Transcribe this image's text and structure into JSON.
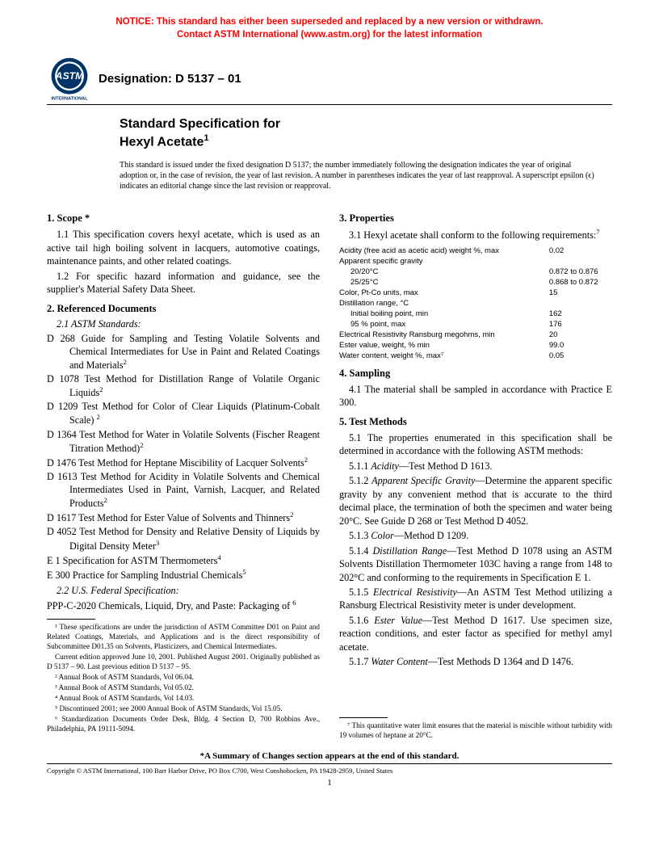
{
  "notice": {
    "line1": "NOTICE: This standard has either been superseded and replaced by a new version or withdrawn.",
    "line2": "Contact ASTM International (www.astm.org) for the latest information"
  },
  "designation_label": "Designation: D 5137 – 01",
  "logo": {
    "top_text": "ASTM",
    "bottom_text": "INTERNATIONAL"
  },
  "title": {
    "line1": "Standard Specification for",
    "line2": "Hexyl Acetate",
    "sup": "1"
  },
  "intro": "This standard is issued under the fixed designation D 5137; the number immediately following the designation indicates the year of original adoption or, in the case of revision, the year of last revision. A number in parentheses indicates the year of last reapproval. A superscript epsilon (ϵ) indicates an editorial change since the last revision or reapproval.",
  "sections": {
    "scope": {
      "heading": "1.  Scope *",
      "p1": "1.1 This specification covers hexyl acetate, which is used as an active tail high boiling solvent in lacquers, automotive coatings, maintenance paints, and other related coatings.",
      "p2": "1.2 For specific hazard information and guidance, see the supplier's Material Safety Data Sheet."
    },
    "refdocs": {
      "heading": "2.  Referenced Documents",
      "sub1": "2.1  ASTM Standards:",
      "items": [
        {
          "code": "D 268",
          "text": " Guide for Sampling and Testing Volatile Solvents and Chemical Intermediates for Use in Paint and Related Coatings and Materials",
          "sup": "2"
        },
        {
          "code": "D 1078",
          "text": " Test Method for Distillation Range of Volatile Organic Liquids",
          "sup": "2"
        },
        {
          "code": "D 1209",
          "text": " Test Method for Color of Clear Liquids (Platinum-Cobalt Scale) ",
          "sup": "2"
        },
        {
          "code": "D 1364",
          "text": " Test Method for Water in Volatile Solvents (Fischer Reagent Titration Method)",
          "sup": "2"
        },
        {
          "code": "D 1476",
          "text": " Test Method for Heptane Miscibility of Lacquer Solvents",
          "sup": "2"
        },
        {
          "code": "D 1613",
          "text": " Test Method for Acidity in Volatile Solvents and Chemical Intermediates Used in Paint, Varnish, Lacquer, and Related Products",
          "sup": "2"
        },
        {
          "code": "D 1617",
          "text": " Test Method for Ester Value of Solvents and Thinners",
          "sup": "2"
        },
        {
          "code": "D 4052",
          "text": " Test Method for Density and Relative Density of Liquids by Digital Density Meter",
          "sup": "3"
        },
        {
          "code": "E 1",
          "text": " Specification for ASTM Thermometers",
          "sup": "4"
        },
        {
          "code": "E 300",
          "text": " Practice for Sampling Industrial Chemicals",
          "sup": "5"
        }
      ],
      "sub2": "2.2   U.S. Federal Specification:",
      "fed": {
        "code": "PPP-C-2020",
        "text": " Chemicals, Liquid, Dry, and Paste: Packaging of ",
        "sup": "6"
      }
    },
    "properties": {
      "heading": "3.  Properties",
      "p1_a": "3.1 Hexyl acetate shall conform to the following requirements:",
      "p1_sup": "7",
      "rows": [
        {
          "label": "Acidity (free acid as acetic acid) weight %, max",
          "value": "0.02",
          "indent": false
        },
        {
          "label": "Apparent specific gravity",
          "value": "",
          "indent": false
        },
        {
          "label": "20/20°C",
          "value": "0.872 to 0.876",
          "indent": true
        },
        {
          "label": "25/25°C",
          "value": "0.868 to 0.872",
          "indent": true
        },
        {
          "label": "Color, Pt-Co units, max",
          "value": "15",
          "indent": false
        },
        {
          "label": "Distillation range, °C",
          "value": "",
          "indent": false
        },
        {
          "label": "Initial boiling point, min",
          "value": "162",
          "indent": true
        },
        {
          "label": "95 % point, max",
          "value": "176",
          "indent": true
        },
        {
          "label": "Electrical Resistivity Ransburg megohms, min",
          "value": "20",
          "indent": false
        },
        {
          "label": "Ester value, weight, % min",
          "value": "99.0",
          "indent": false
        },
        {
          "label": "Water content, weight %, max⁷",
          "value": "0.05",
          "indent": false
        }
      ]
    },
    "sampling": {
      "heading": "4.  Sampling",
      "p1": "4.1 The material shall be sampled in accordance with Practice E 300."
    },
    "testmethods": {
      "heading": "5.  Test Methods",
      "p1": "5.1 The properties enumerated in this specification shall be determined in accordance with the following ASTM methods:",
      "p11": "5.1.1 Acidity—Test Method D 1613.",
      "p12": "5.1.2 Apparent Specific Gravity—Determine the apparent specific gravity by any convenient method that is accurate to the third decimal place, the termination of both the specimen and water being 20°C. See Guide D 268 or Test Method D 4052.",
      "p13": "5.1.3 Color—Method D 1209.",
      "p14": "5.1.4 Distillation Range—Test Method D 1078 using an ASTM Solvents Distillation Thermometer 103C having a range from 148 to 202°C and conforming to the requirements in Specification E 1.",
      "p15": "5.1.5 Electrical Resistivity—An ASTM Test Method utilizing a Ransburg Electrical Resistivity meter is under development.",
      "p16": "5.1.6 Ester Value—Test Method D 1617. Use specimen size, reaction conditions, and ester factor as specified for methyl amyl acetate.",
      "p17": "5.1.7 Water Content—Test Methods D 1364 and D 1476."
    }
  },
  "footnotes_left": [
    "¹ These specifications are under the jurisdiction of ASTM Committee D01 on Paint and Related Coatings, Materials, and Applications and is the direct responsibility of Subcommittee D01.35 on Solvents, Plasticizers, and Chemical Intermediates.",
    "Current edition approved June 10, 2001. Published August 2001. Originally published as D 5137 – 90. Last previous edition D 5137 – 95.",
    "² Annual Book of ASTM Standards, Vol 06.04.",
    "³ Annual Book of ASTM Standards, Vol 05.02.",
    "⁴ Annual Book of ASTM Standards, Vol 14.03.",
    "⁵ Discontinued 2001; see 2000 Annual Book of ASTM Standards, Vol 15.05.",
    "⁶ Standardization Documents Order Desk, Bldg. 4 Section D, 700 Robbins Ave., Philadelphia, PA 19111-5094."
  ],
  "footnotes_right": [
    "⁷ This quantitative water limit ensures that the material is miscible without turbidity with 19 volumes of heptane at 20°C."
  ],
  "bottom_note": "*A Summary of Changes section appears at the end of this standard.",
  "copyright": "Copyright © ASTM International, 100 Barr Harbor Drive, PO Box C700, West Conshohocken, PA 19428-2959, United States",
  "page_number": "1"
}
